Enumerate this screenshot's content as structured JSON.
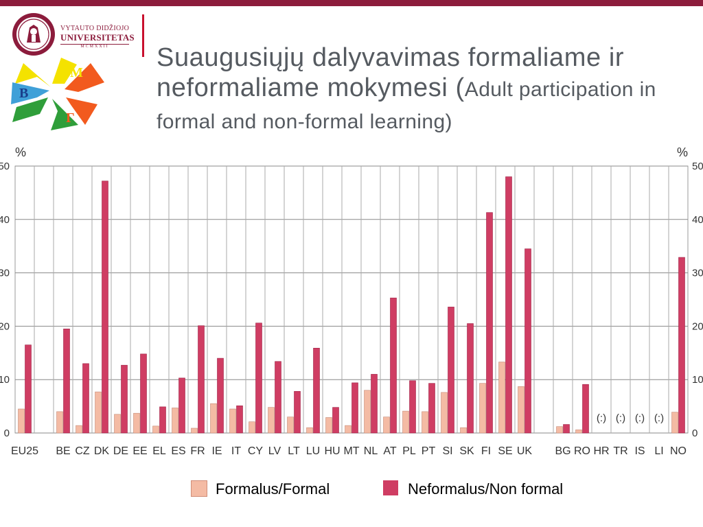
{
  "header": {
    "university_line1": "VYTAUTO DIDŽIOJO",
    "university_line2": "UNIVERSITETAS",
    "university_line3": "MCMXXII",
    "title_main": "Suaugusiųjų dalyvavimas formaliame ir neformaliame mokymesi (",
    "title_sub": "Adult participation in formal and non-formal learning)"
  },
  "colors": {
    "brand": "#8c1c3c",
    "formal": "#f4bba4",
    "non_formal": "#cf3d63"
  },
  "chart_data": {
    "type": "bar",
    "ylabel": "%",
    "ylabel_right": "%",
    "ylim": [
      0,
      50
    ],
    "yticks": [
      0,
      10,
      20,
      30,
      40,
      50
    ],
    "grid": true,
    "legend_position": "bottom",
    "categories": [
      "EU25",
      "",
      "BE",
      "CZ",
      "DK",
      "DE",
      "EE",
      "EL",
      "ES",
      "FR",
      "IE",
      "IT",
      "CY",
      "LV",
      "LT",
      "LU",
      "HU",
      "MT",
      "NL",
      "AT",
      "PL",
      "PT",
      "SI",
      "SK",
      "FI",
      "SE",
      "UK",
      "",
      "BG",
      "RO",
      "HR",
      "TR",
      "IS",
      "LI",
      "NO"
    ],
    "missing_label": "(:)",
    "series": [
      {
        "name": "Formalus/Formal",
        "values": [
          4.5,
          null,
          4,
          1.4,
          7.7,
          3.5,
          3.7,
          1.3,
          4.7,
          0.9,
          5.5,
          4.5,
          2.1,
          4.8,
          3,
          1,
          2.9,
          1.4,
          8,
          3,
          4.1,
          4,
          7.6,
          1,
          9.3,
          13.3,
          8.7,
          null,
          1.2,
          0.6,
          null,
          null,
          null,
          null,
          3.9
        ]
      },
      {
        "name": "Neformalus/Non formal",
        "values": [
          16.5,
          null,
          19.5,
          13,
          47.2,
          12.7,
          14.8,
          4.9,
          10.3,
          20.1,
          14,
          5.1,
          20.6,
          13.4,
          7.8,
          15.9,
          4.8,
          9.4,
          11,
          25.3,
          9.8,
          9.3,
          23.6,
          20.5,
          41.3,
          48,
          34.5,
          null,
          1.6,
          9.1,
          null,
          null,
          null,
          null,
          32.9
        ]
      }
    ]
  }
}
